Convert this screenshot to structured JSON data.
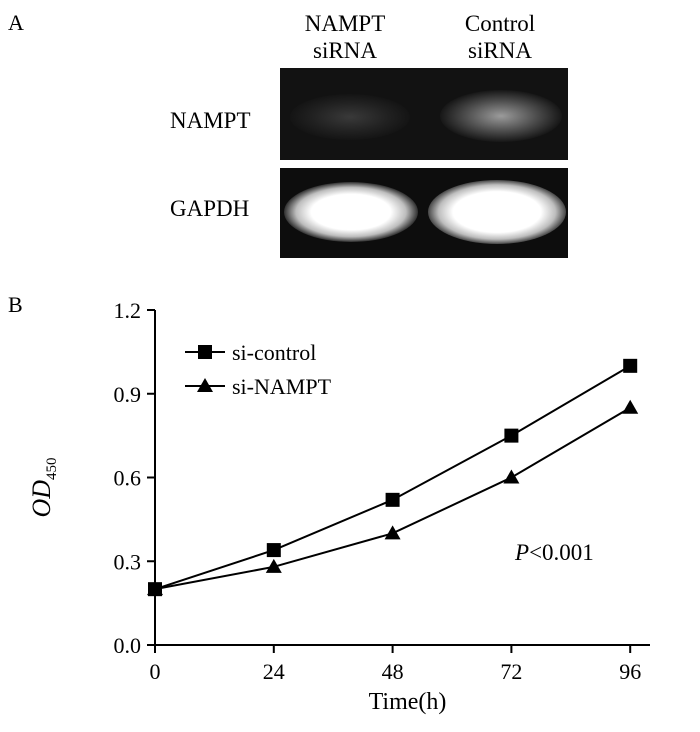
{
  "panel_a": {
    "letter": "A",
    "lanes": [
      {
        "line1": "NAMPT",
        "line2": "siRNA"
      },
      {
        "line1": "Control",
        "line2": "siRNA"
      }
    ],
    "rows": [
      "NAMPT",
      "GAPDH"
    ],
    "band_intensity": {
      "NAMPT": [
        0.35,
        0.75
      ],
      "GAPDH": [
        1.0,
        1.0
      ]
    }
  },
  "panel_b": {
    "letter": "B"
  },
  "chart_data": {
    "type": "line",
    "x": [
      0,
      24,
      48,
      72,
      96
    ],
    "series": [
      {
        "name": "si-control",
        "marker": "square",
        "values": [
          0.2,
          0.34,
          0.52,
          0.75,
          1.0
        ]
      },
      {
        "name": "si-NAMPT",
        "marker": "triangle",
        "values": [
          0.2,
          0.28,
          0.4,
          0.6,
          0.85
        ]
      }
    ],
    "xlabel": "Time(h)",
    "ylabel_main": "OD",
    "ylabel_sub": "450",
    "xticks": [
      "0",
      "24",
      "48",
      "72",
      "96"
    ],
    "yticks": [
      "0.0",
      "0.3",
      "0.6",
      "0.9",
      "1.2"
    ],
    "xlim": [
      0,
      100
    ],
    "ylim": [
      0,
      1.2
    ],
    "annotation_italic": "P",
    "annotation_rest": "<0.001",
    "legend_position": "top-left",
    "grid": false,
    "color": "#000000"
  }
}
